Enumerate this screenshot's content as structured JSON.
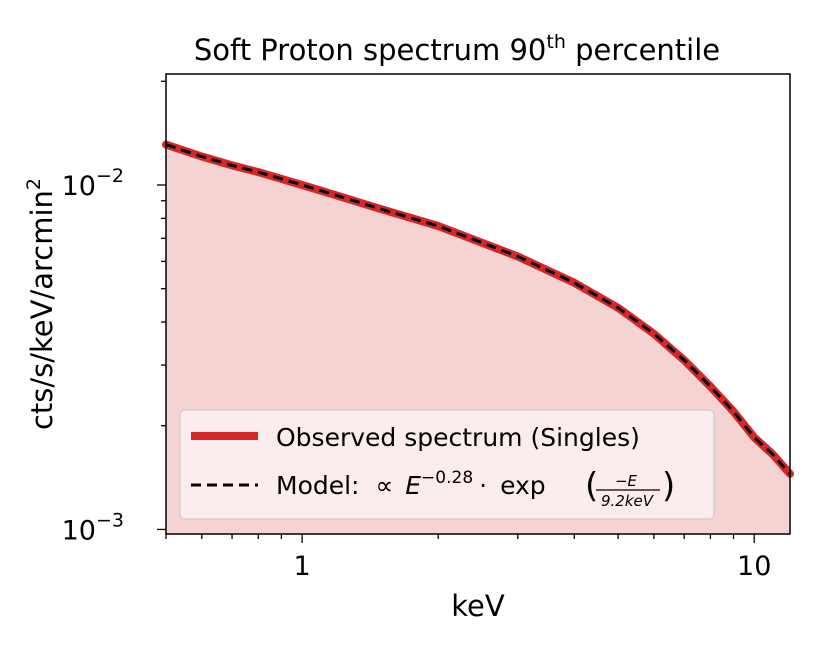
{
  "chart_data": {
    "type": "area",
    "title": "Soft Proton spectrum 90",
    "title_sup": "th",
    "title_end": " percentile",
    "xlabel": "keV",
    "ylabel": "cts/s/keV/arcmin",
    "ylabel_sup": "2",
    "xscale": "log",
    "yscale": "log",
    "xlim": [
      0.5,
      12
    ],
    "ylim": [
      0.00097,
      0.021
    ],
    "x_ticks": [
      {
        "value": 1,
        "label": "1"
      },
      {
        "value": 10,
        "label": "10"
      }
    ],
    "y_ticks": [
      {
        "value": 0.001,
        "base": "10",
        "exp": "−3"
      },
      {
        "value": 0.01,
        "base": "10",
        "exp": "−2"
      }
    ],
    "series": [
      {
        "name": "Observed spectrum (Singles)",
        "style": "solid-filled",
        "x": [
          0.5,
          0.6,
          0.7,
          0.8,
          1.0,
          1.2,
          1.5,
          2.0,
          2.5,
          3.0,
          4.0,
          5.0,
          6.0,
          7.0,
          8.0,
          9.0,
          10.0,
          11.0,
          12.0
        ],
        "y": [
          0.0131,
          0.0121,
          0.0114,
          0.0109,
          0.01,
          0.0093,
          0.0085,
          0.0076,
          0.0068,
          0.0062,
          0.0052,
          0.0044,
          0.0037,
          0.0031,
          0.0026,
          0.0022,
          0.00185,
          0.00165,
          0.00145
        ]
      },
      {
        "name": "Model",
        "style": "dashed",
        "equation": "∝ E^{-0.28}·exp(-E/9.2keV)",
        "x": [
          0.5,
          0.6,
          0.7,
          0.8,
          1.0,
          1.2,
          1.5,
          2.0,
          2.5,
          3.0,
          4.0,
          5.0,
          6.0,
          7.0,
          8.0,
          9.0,
          10.0,
          11.0,
          12.0
        ],
        "y": [
          0.0131,
          0.0121,
          0.0114,
          0.0109,
          0.01,
          0.0093,
          0.0085,
          0.0076,
          0.0068,
          0.0062,
          0.0052,
          0.0044,
          0.0037,
          0.0031,
          0.0026,
          0.0022,
          0.00185,
          0.00165,
          0.00145
        ]
      }
    ],
    "legend": {
      "position": "lower-left",
      "observed_label": "Observed spectrum (Singles)",
      "model_label": "Model:",
      "model_prop": "∝",
      "model_E": "E",
      "model_exp": "−0.28",
      "model_dot": "·",
      "model_func": "exp",
      "model_num": "−E",
      "model_den": "9.2keV"
    },
    "colors": {
      "observed_line": "#d62728",
      "observed_fill": "#f5d3d3",
      "model_line": "#000000",
      "legend_bg": "#fbf1f1",
      "legend_border": "#cccccc"
    }
  }
}
